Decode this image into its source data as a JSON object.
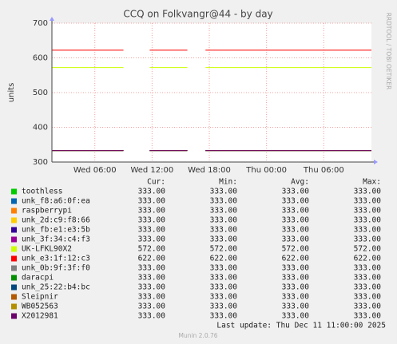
{
  "chart_data": {
    "type": "line",
    "title": "CCQ on Folkvangr@44 - by day",
    "y_label": "units",
    "watermark": "RRDTOOL / TOBI OETIKER",
    "last_update": "Last update: Thu Dec 11 11:00:00 2025",
    "footer": "Munin 2.0.76",
    "x": [
      1.5,
      9,
      9,
      11.75,
      15.7,
      15.7,
      17.6,
      35
    ],
    "xlim": [
      1.5,
      35
    ],
    "xticks": [
      {
        "value": 6,
        "label": "Wed 06:00"
      },
      {
        "value": 12,
        "label": "Wed 12:00"
      },
      {
        "value": 18,
        "label": "Wed 18:00"
      },
      {
        "value": 24,
        "label": "Thu 00:00"
      },
      {
        "value": 30,
        "label": "Thu 06:00"
      }
    ],
    "ylim": [
      300,
      700
    ],
    "yticks": [
      300,
      400,
      500,
      600,
      700
    ],
    "grid": true,
    "stat_columns": [
      "Cur:",
      "Min:",
      "Avg:",
      "Max:"
    ],
    "series": [
      {
        "name": "toothless",
        "color": "#00cc00",
        "values": [
          333,
          333,
          null,
          333,
          333,
          null,
          333,
          333
        ],
        "stats": [
          "333.00",
          "333.00",
          "333.00",
          "333.00"
        ]
      },
      {
        "name": "unk_f8:a6:0f:ea",
        "color": "#0066b3",
        "values": [
          333,
          333,
          null,
          333,
          333,
          null,
          333,
          333
        ],
        "stats": [
          "333.00",
          "333.00",
          "333.00",
          "333.00"
        ]
      },
      {
        "name": "raspberrypi",
        "color": "#ff8000",
        "values": [
          333,
          333,
          null,
          333,
          333,
          null,
          333,
          333
        ],
        "stats": [
          "333.00",
          "333.00",
          "333.00",
          "333.00"
        ]
      },
      {
        "name": "unk_2d:c9:f8:66",
        "color": "#ffcc00",
        "values": [
          333,
          333,
          null,
          333,
          333,
          null,
          333,
          333
        ],
        "stats": [
          "333.00",
          "333.00",
          "333.00",
          "333.00"
        ]
      },
      {
        "name": "unk_fb:e1:e3:5b",
        "color": "#330099",
        "values": [
          333,
          333,
          null,
          333,
          333,
          null,
          333,
          333
        ],
        "stats": [
          "333.00",
          "333.00",
          "333.00",
          "333.00"
        ]
      },
      {
        "name": "unk_3f:34:c4:f3",
        "color": "#990099",
        "values": [
          333,
          333,
          null,
          333,
          333,
          null,
          333,
          333
        ],
        "stats": [
          "333.00",
          "333.00",
          "333.00",
          "333.00"
        ]
      },
      {
        "name": "UK-LFKL90X2",
        "color": "#ccff00",
        "values": [
          572,
          572,
          null,
          572,
          572,
          null,
          572,
          572
        ],
        "stats": [
          "572.00",
          "572.00",
          "572.00",
          "572.00"
        ]
      },
      {
        "name": "unk_e3:1f:12:c3",
        "color": "#ff0000",
        "values": [
          622,
          622,
          null,
          622,
          622,
          null,
          622,
          622
        ],
        "stats": [
          "622.00",
          "622.00",
          "622.00",
          "622.00"
        ]
      },
      {
        "name": "unk_0b:9f:3f:f0",
        "color": "#808080",
        "values": [
          333,
          333,
          null,
          333,
          333,
          null,
          333,
          333
        ],
        "stats": [
          "333.00",
          "333.00",
          "333.00",
          "333.00"
        ]
      },
      {
        "name": "daracpi",
        "color": "#008f00",
        "values": [
          333,
          333,
          null,
          333,
          333,
          null,
          333,
          333
        ],
        "stats": [
          "333.00",
          "333.00",
          "333.00",
          "333.00"
        ]
      },
      {
        "name": "unk_25:22:b4:bc",
        "color": "#00487d",
        "values": [
          333,
          333,
          null,
          333,
          333,
          null,
          333,
          333
        ],
        "stats": [
          "333.00",
          "333.00",
          "333.00",
          "333.00"
        ]
      },
      {
        "name": "Sleipnir",
        "color": "#b35a00",
        "values": [
          333,
          333,
          null,
          333,
          333,
          null,
          333,
          333
        ],
        "stats": [
          "333.00",
          "333.00",
          "333.00",
          "333.00"
        ]
      },
      {
        "name": "WB052563",
        "color": "#b38f00",
        "values": [
          333,
          333,
          null,
          333,
          333,
          null,
          333,
          333
        ],
        "stats": [
          "333.00",
          "333.00",
          "333.00",
          "333.00"
        ]
      },
      {
        "name": "X2012981",
        "color": "#6b006b",
        "values": [
          333,
          333,
          null,
          333,
          333,
          null,
          333,
          333
        ],
        "stats": [
          "333.00",
          "333.00",
          "333.00",
          "333.00"
        ]
      }
    ]
  }
}
